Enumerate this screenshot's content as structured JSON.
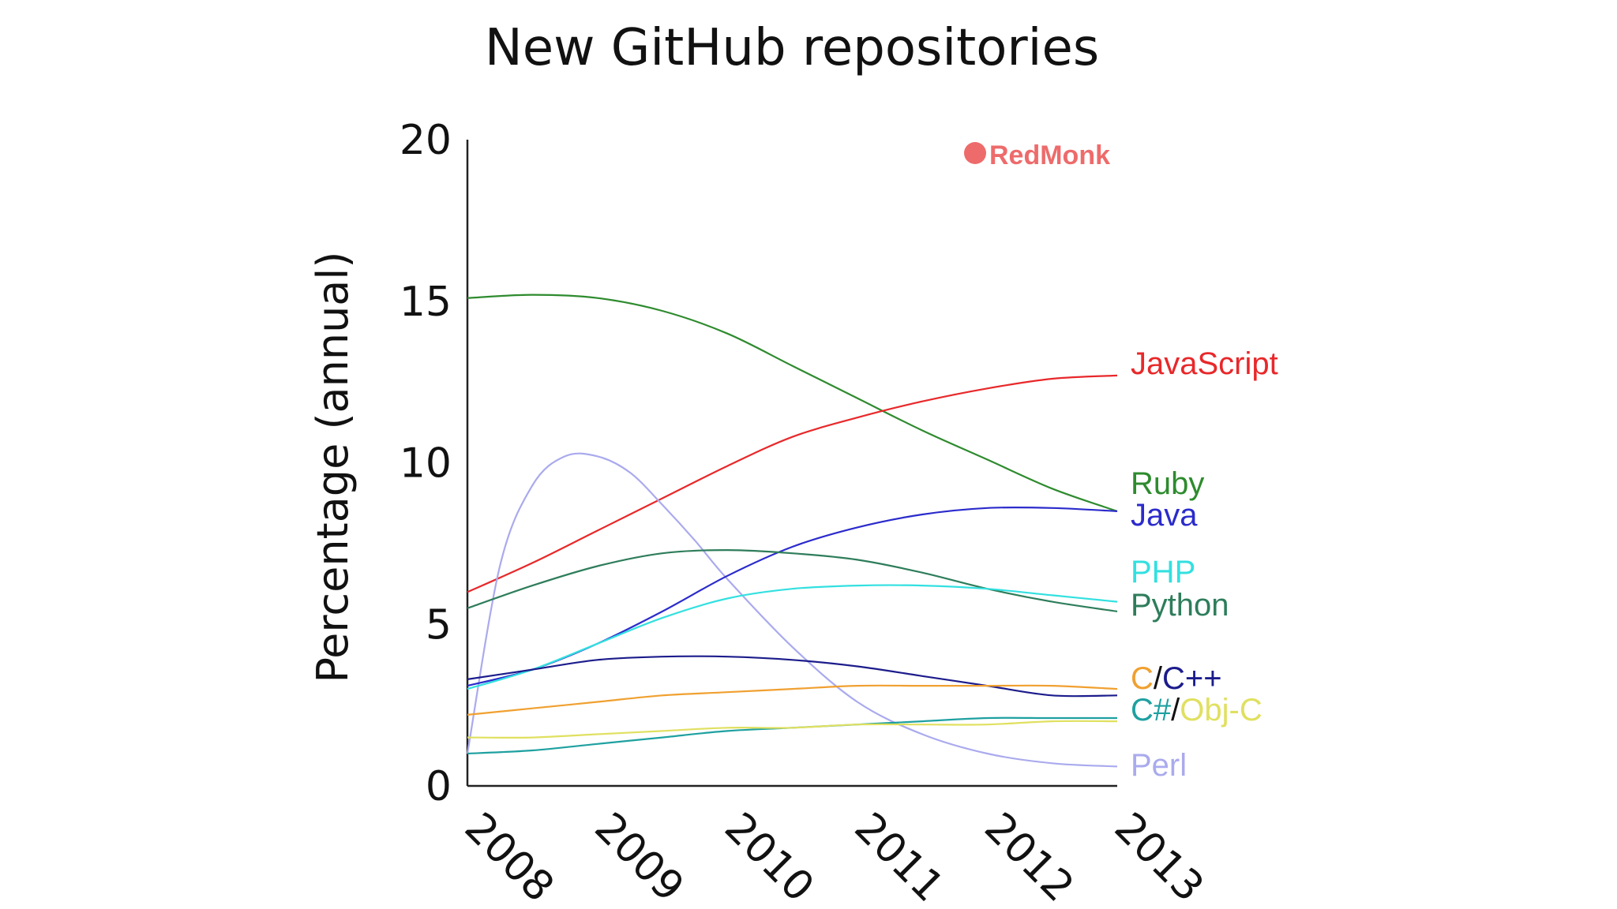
{
  "chart_data": {
    "type": "line",
    "title": "New GitHub repositories",
    "xlabel": "",
    "ylabel": "Percentage (annual)",
    "x": [
      2008,
      2009,
      2010,
      2011,
      2012,
      2013
    ],
    "x_tick_labels": [
      "2008",
      "2009",
      "2010",
      "2011",
      "2012",
      "2013"
    ],
    "y_ticks": [
      0,
      5,
      10,
      15,
      20
    ],
    "y_tick_labels": [
      "0",
      "5",
      "10",
      "15",
      "20"
    ],
    "ylim": [
      0,
      20
    ],
    "xlim": [
      2008,
      2013
    ],
    "grid": false,
    "legend": "labels at right end of lines",
    "logo": "RedMonk",
    "series": [
      {
        "name": "Ruby",
        "color": "#2e8b2e",
        "x": [
          2008,
          2008.5,
          2009,
          2009.5,
          2010,
          2010.5,
          2011,
          2011.5,
          2012,
          2012.5,
          2013
        ],
        "values": [
          15.1,
          15.2,
          15.1,
          14.7,
          14.0,
          13.0,
          12.0,
          11.0,
          10.1,
          9.2,
          8.5
        ]
      },
      {
        "name": "JavaScript",
        "color": "#e8282a",
        "x": [
          2008,
          2008.5,
          2009,
          2009.5,
          2010,
          2010.5,
          2011,
          2011.5,
          2012,
          2012.5,
          2013
        ],
        "values": [
          6.0,
          6.9,
          7.9,
          8.9,
          9.9,
          10.8,
          11.4,
          11.9,
          12.3,
          12.6,
          12.7
        ]
      },
      {
        "name": "Perl",
        "color": "#aaaaee",
        "x": [
          2008,
          2008.25,
          2008.5,
          2008.75,
          2009,
          2009.25,
          2009.5,
          2009.75,
          2010,
          2010.5,
          2011,
          2011.5,
          2012,
          2012.5,
          2013
        ],
        "values": [
          1.0,
          6.8,
          9.3,
          10.2,
          10.2,
          9.7,
          8.7,
          7.6,
          6.4,
          4.3,
          2.6,
          1.6,
          1.0,
          0.7,
          0.6
        ]
      },
      {
        "name": "Java",
        "color": "#2b2bcc",
        "x": [
          2008,
          2008.5,
          2009,
          2009.5,
          2010,
          2010.5,
          2011,
          2011.5,
          2012,
          2012.5,
          2013
        ],
        "values": [
          3.1,
          3.6,
          4.4,
          5.4,
          6.5,
          7.4,
          8.0,
          8.4,
          8.6,
          8.6,
          8.5
        ]
      },
      {
        "name": "Python",
        "color": "#2e7d5b",
        "x": [
          2008,
          2008.5,
          2009,
          2009.5,
          2010,
          2010.5,
          2011,
          2011.5,
          2012,
          2012.5,
          2013
        ],
        "values": [
          5.5,
          6.2,
          6.8,
          7.2,
          7.3,
          7.2,
          7.0,
          6.6,
          6.1,
          5.7,
          5.4
        ]
      },
      {
        "name": "PHP",
        "color": "#33e0e0",
        "x": [
          2008,
          2008.5,
          2009,
          2009.5,
          2010,
          2010.5,
          2011,
          2011.5,
          2012,
          2012.5,
          2013
        ],
        "values": [
          3.0,
          3.6,
          4.4,
          5.2,
          5.8,
          6.1,
          6.2,
          6.2,
          6.1,
          5.9,
          5.7
        ]
      },
      {
        "name": "C++",
        "color": "#1c1c8c",
        "x": [
          2008,
          2008.5,
          2009,
          2009.5,
          2010,
          2010.5,
          2011,
          2011.5,
          2012,
          2012.5,
          2013
        ],
        "values": [
          3.3,
          3.6,
          3.9,
          4.0,
          4.0,
          3.9,
          3.7,
          3.4,
          3.1,
          2.8,
          2.8
        ]
      },
      {
        "name": "C",
        "color": "#f0a030",
        "x": [
          2008,
          2008.5,
          2009,
          2009.5,
          2010,
          2010.5,
          2011,
          2011.5,
          2012,
          2012.5,
          2013
        ],
        "values": [
          2.2,
          2.4,
          2.6,
          2.8,
          2.9,
          3.0,
          3.1,
          3.1,
          3.1,
          3.1,
          3.0
        ]
      },
      {
        "name": "C#",
        "color": "#1fa0a0",
        "x": [
          2008,
          2008.5,
          2009,
          2009.5,
          2010,
          2010.5,
          2011,
          2011.5,
          2012,
          2012.5,
          2013
        ],
        "values": [
          1.0,
          1.1,
          1.3,
          1.5,
          1.7,
          1.8,
          1.9,
          2.0,
          2.1,
          2.1,
          2.1
        ]
      },
      {
        "name": "Obj-C",
        "color": "#e0e060",
        "x": [
          2008,
          2008.5,
          2009,
          2009.5,
          2010,
          2010.5,
          2011,
          2011.5,
          2012,
          2012.5,
          2013
        ],
        "values": [
          1.5,
          1.5,
          1.6,
          1.7,
          1.8,
          1.8,
          1.9,
          1.9,
          1.9,
          2.0,
          2.0
        ]
      }
    ],
    "labels": [
      {
        "parts": [
          {
            "text": "JavaScript",
            "color": "#e8282a"
          }
        ]
      },
      {
        "parts": [
          {
            "text": "Ruby",
            "color": "#2e8b2e"
          }
        ]
      },
      {
        "parts": [
          {
            "text": "Java",
            "color": "#2b2bcc"
          }
        ]
      },
      {
        "parts": [
          {
            "text": "PHP",
            "color": "#33e0e0"
          }
        ]
      },
      {
        "parts": [
          {
            "text": "Python",
            "color": "#2e7d5b"
          }
        ]
      },
      {
        "parts": [
          {
            "text": "C",
            "color": "#f0a030"
          },
          {
            "text": "/",
            "color": "#111111"
          },
          {
            "text": "C++",
            "color": "#1c1c8c"
          }
        ]
      },
      {
        "parts": [
          {
            "text": "C#",
            "color": "#1fa0a0"
          },
          {
            "text": "/",
            "color": "#111111"
          },
          {
            "text": "Obj-C",
            "color": "#e0e060"
          }
        ]
      },
      {
        "parts": [
          {
            "text": "Perl",
            "color": "#aaaaee"
          }
        ]
      }
    ],
    "logo_color": "#ee6b6b"
  }
}
